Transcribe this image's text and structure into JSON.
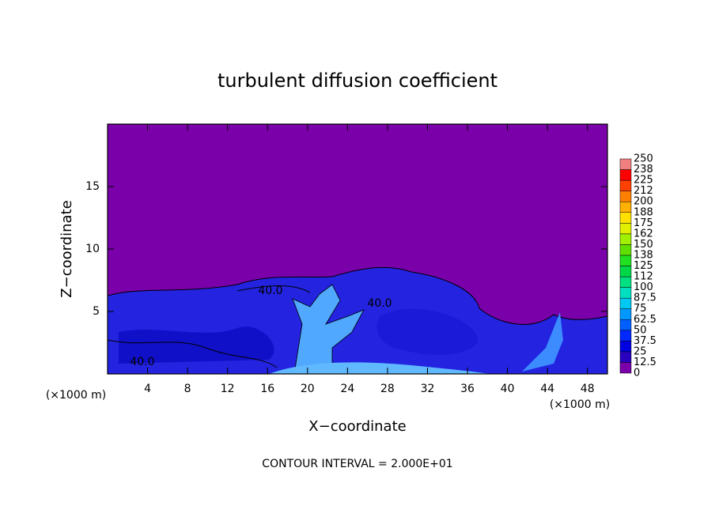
{
  "chart_data": {
    "type": "contour",
    "title": "turbulent diffusion coefficient",
    "x_label": "X−coordinate",
    "y_label": "Z−coordinate",
    "x_unit": "(×1000 m)",
    "y_unit": "(×1000 m)",
    "note": "CONTOUR INTERVAL = 2.000E+01",
    "xlim": [
      0,
      50
    ],
    "xticks": [
      4,
      8,
      12,
      16,
      20,
      24,
      28,
      32,
      36,
      40,
      44,
      48
    ],
    "ylim": [
      0,
      20
    ],
    "yticks": [
      5,
      10,
      15
    ],
    "contour_labels": [
      {
        "value": 40,
        "label": "40.0"
      }
    ],
    "colorbar_ticks": [
      0,
      12.5,
      25,
      37.5,
      50,
      62.5,
      75,
      87.5,
      100,
      {
        "value": 112.5,
        "label": "112"
      },
      125,
      {
        "value": 137.5,
        "label": "138"
      },
      150,
      {
        "value": 162.5,
        "label": "162"
      },
      175,
      {
        "value": 187.5,
        "label": "188"
      },
      200,
      {
        "value": 212.5,
        "label": "212"
      },
      225,
      {
        "value": 237.5,
        "label": "238"
      },
      250
    ],
    "colorbar_colors": [
      "#7a00aa",
      "#2a00c0",
      "#0000e0",
      "#0028ff",
      "#0060ff",
      "#0098ff",
      "#00c8f0",
      "#00e0c0",
      "#00e080",
      "#00d848",
      "#20e020",
      "#60e000",
      "#a0f000",
      "#e0f000",
      "#ffe000",
      "#ffb000",
      "#ff8000",
      "#ff4000",
      "#ff0000",
      "#f08080"
    ]
  }
}
